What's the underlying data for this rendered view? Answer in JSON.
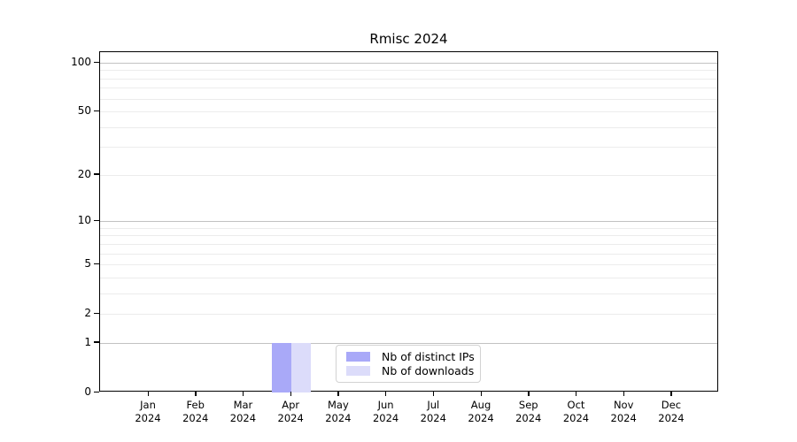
{
  "chart_data": {
    "type": "bar",
    "title": "Rmisc 2024",
    "categories": [
      "Jan 2024",
      "Feb 2024",
      "Mar 2024",
      "Apr 2024",
      "May 2024",
      "Jun 2024",
      "Jul 2024",
      "Aug 2024",
      "Sep 2024",
      "Oct 2024",
      "Nov 2024",
      "Dec 2024"
    ],
    "series": [
      {
        "name": "Nb of distinct IPs",
        "color": "#a9a9f8",
        "values": [
          0,
          0,
          0,
          1,
          0,
          0,
          0,
          0,
          0,
          0,
          0,
          0
        ]
      },
      {
        "name": "Nb of downloads",
        "color": "#dcdcfa",
        "values": [
          0,
          0,
          0,
          1,
          0,
          0,
          0,
          0,
          0,
          0,
          0,
          0
        ]
      }
    ],
    "xlabel": "",
    "ylabel": "",
    "yscale": "log1p",
    "ytick_labels": [
      100,
      50,
      20,
      10,
      5,
      2,
      1,
      0
    ],
    "ylim": [
      0,
      116
    ],
    "grid": true,
    "legend_position": "lower center"
  },
  "colors": {
    "major_grid": "#c2c2c2",
    "minor_grid": "#ececec",
    "axis": "#000000",
    "background": "#ffffff"
  }
}
